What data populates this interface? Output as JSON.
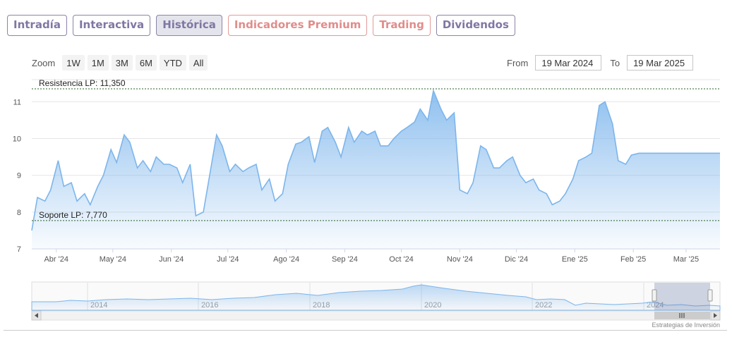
{
  "tabs": [
    {
      "label": "Intradía",
      "state": "normal"
    },
    {
      "label": "Interactiva",
      "state": "normal"
    },
    {
      "label": "Histórica",
      "state": "active"
    },
    {
      "label": "Indicadores Premium",
      "state": "premium"
    },
    {
      "label": "Trading",
      "state": "premium"
    },
    {
      "label": "Dividendos",
      "state": "normal"
    }
  ],
  "zoom": {
    "label": "Zoom",
    "buttons": [
      "1W",
      "1M",
      "3M",
      "6M",
      "YTD",
      "All"
    ]
  },
  "range": {
    "from_label": "From",
    "from_value": "19 Mar 2024",
    "to_label": "To",
    "to_value": "19 Mar 2025"
  },
  "credits": "Estrategias de Inversión",
  "colors": {
    "series_line": "#7cb5ec",
    "series_fill_top": "#7cb5ec",
    "reference_line": "#2d5d2d",
    "tab_border": "#8c84a8",
    "premium": "#e08d8b"
  },
  "chart_data": {
    "type": "area",
    "ylim": [
      7,
      11.6
    ],
    "yticks": [
      7,
      8,
      9,
      10,
      11
    ],
    "xlim": [
      "2024-03-19",
      "2025-03-19"
    ],
    "xticks": [
      {
        "label": "Abr '24",
        "date": "2024-04-01"
      },
      {
        "label": "May '24",
        "date": "2024-05-01"
      },
      {
        "label": "Jun '24",
        "date": "2024-06-01"
      },
      {
        "label": "Jul '24",
        "date": "2024-07-01"
      },
      {
        "label": "Ago '24",
        "date": "2024-08-01"
      },
      {
        "label": "Sep '24",
        "date": "2024-09-01"
      },
      {
        "label": "Oct '24",
        "date": "2024-10-01"
      },
      {
        "label": "Nov '24",
        "date": "2024-11-01"
      },
      {
        "label": "Dic '24",
        "date": "2024-12-01"
      },
      {
        "label": "Ene '25",
        "date": "2025-01-01"
      },
      {
        "label": "Feb '25",
        "date": "2025-02-01"
      },
      {
        "label": "Mar '25",
        "date": "2025-03-01"
      }
    ],
    "reference_lines": [
      {
        "label": "Resistencia LP: 11,350",
        "value": 11.35
      },
      {
        "label": "Soporte LP: 7,770",
        "value": 7.77
      }
    ],
    "grid": true,
    "series": [
      {
        "x": [
          "2024-03-19",
          "2024-03-22",
          "2024-03-26",
          "2024-03-29",
          "2024-04-02",
          "2024-04-05",
          "2024-04-09",
          "2024-04-12",
          "2024-04-16",
          "2024-04-19",
          "2024-04-23",
          "2024-04-26",
          "2024-04-30",
          "2024-05-03",
          "2024-05-07",
          "2024-05-10",
          "2024-05-14",
          "2024-05-17",
          "2024-05-21",
          "2024-05-24",
          "2024-05-28",
          "2024-05-31",
          "2024-06-04",
          "2024-06-07",
          "2024-06-11",
          "2024-06-14",
          "2024-06-18",
          "2024-06-21",
          "2024-06-25",
          "2024-06-28",
          "2024-07-02",
          "2024-07-05",
          "2024-07-09",
          "2024-07-12",
          "2024-07-16",
          "2024-07-19",
          "2024-07-23",
          "2024-07-26",
          "2024-07-30",
          "2024-08-02",
          "2024-08-06",
          "2024-08-09",
          "2024-08-13",
          "2024-08-16",
          "2024-08-20",
          "2024-08-23",
          "2024-08-27",
          "2024-08-30",
          "2024-09-03",
          "2024-09-06",
          "2024-09-10",
          "2024-09-13",
          "2024-09-17",
          "2024-09-20",
          "2024-09-24",
          "2024-09-27",
          "2024-10-01",
          "2024-10-04",
          "2024-10-08",
          "2024-10-11",
          "2024-10-15",
          "2024-10-18",
          "2024-10-22",
          "2024-10-25",
          "2024-10-29",
          "2024-11-01",
          "2024-11-05",
          "2024-11-08",
          "2024-11-12",
          "2024-11-15",
          "2024-11-19",
          "2024-11-22",
          "2024-11-26",
          "2024-11-29",
          "2024-12-03",
          "2024-12-06",
          "2024-12-10",
          "2024-12-13",
          "2024-12-17",
          "2024-12-20",
          "2024-12-24",
          "2024-12-27",
          "2024-12-31",
          "2025-01-03",
          "2025-01-07",
          "2025-01-10",
          "2025-01-14",
          "2025-01-17",
          "2025-01-21",
          "2025-01-24",
          "2025-01-28",
          "2025-01-31",
          "2025-02-04",
          "2025-02-07",
          "2025-02-11",
          "2025-02-14",
          "2025-02-18",
          "2025-02-21",
          "2025-02-25",
          "2025-02-28",
          "2025-03-04",
          "2025-03-07",
          "2025-03-11",
          "2025-03-14",
          "2025-03-19"
        ],
        "values": [
          7.5,
          8.4,
          8.3,
          8.6,
          9.4,
          8.7,
          8.8,
          8.3,
          8.5,
          8.2,
          8.7,
          9.0,
          9.7,
          9.35,
          10.1,
          9.9,
          9.2,
          9.4,
          9.1,
          9.5,
          9.3,
          9.3,
          9.2,
          8.8,
          9.3,
          7.9,
          8.0,
          8.9,
          10.1,
          9.8,
          9.1,
          9.3,
          9.1,
          9.2,
          9.3,
          8.6,
          8.9,
          8.3,
          8.5,
          9.3,
          9.85,
          9.9,
          10.05,
          9.35,
          10.2,
          10.3,
          9.9,
          9.5,
          10.3,
          9.9,
          10.2,
          10.1,
          10.2,
          9.8,
          9.8,
          10.0,
          10.2,
          10.3,
          10.45,
          10.8,
          10.5,
          11.3,
          10.8,
          10.5,
          10.7,
          8.6,
          8.5,
          8.8,
          9.8,
          9.7,
          9.2,
          9.2,
          9.4,
          9.5,
          9.0,
          8.8,
          8.9,
          8.6,
          8.5,
          8.2,
          8.3,
          8.5,
          8.9,
          9.4,
          9.5,
          9.6,
          10.9,
          11.0,
          10.4,
          9.4,
          9.3,
          9.55,
          9.6,
          9.6,
          9.6,
          9.6,
          9.6,
          9.6,
          9.6,
          9.6,
          9.6,
          9.6,
          9.6,
          9.6,
          9.6
        ]
      }
    ],
    "navigator": {
      "xticks": [
        "2014",
        "2016",
        "2018",
        "2020",
        "2022",
        "2024"
      ]
    }
  }
}
